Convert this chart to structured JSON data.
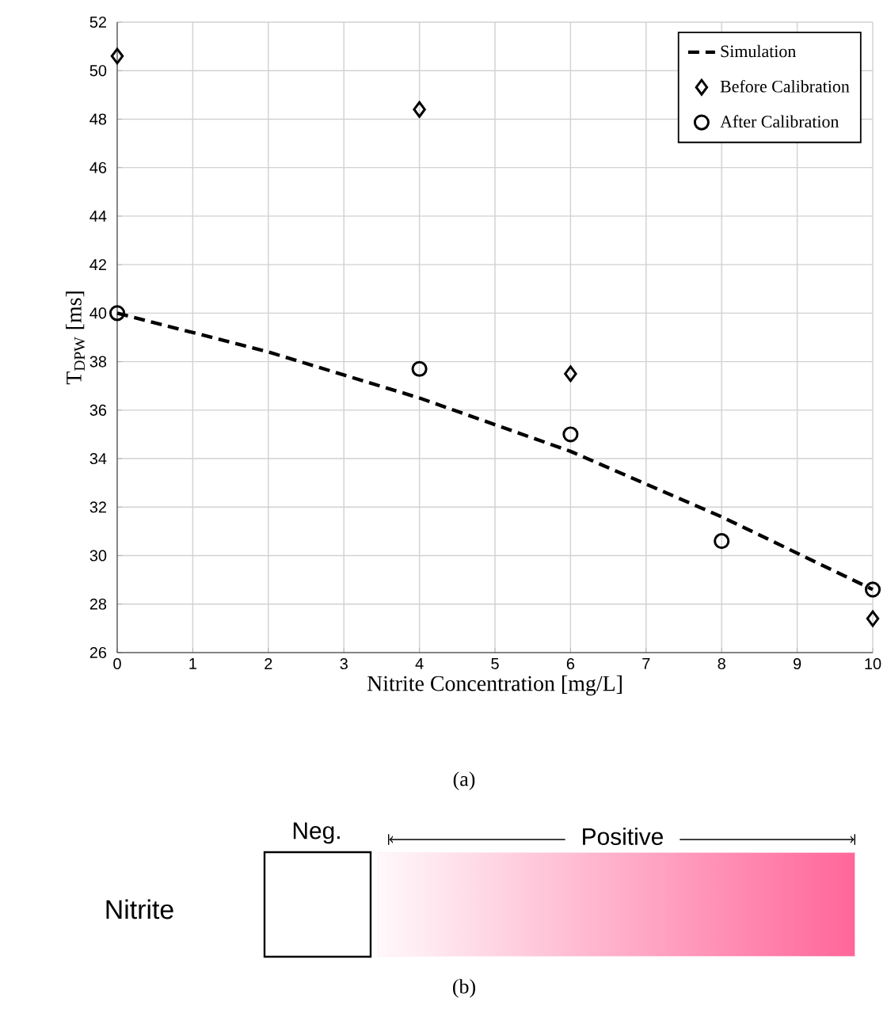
{
  "chart_data": [
    {
      "type": "scatter",
      "xlabel": "Nitrite Concentration [mg/L]",
      "ylabel": "T$_{DPW}$ [ms]",
      "xlim": [
        0,
        10
      ],
      "xticks": [
        0,
        1,
        2,
        3,
        4,
        5,
        6,
        7,
        8,
        9,
        10
      ],
      "ylim": [
        26,
        52
      ],
      "yticks": [
        26,
        28,
        30,
        32,
        34,
        36,
        38,
        40,
        42,
        44,
        46,
        48,
        50,
        52
      ],
      "grid": true,
      "legend": "top right",
      "series": [
        {
          "name": "Simulation",
          "type": "line",
          "line_style": "dashed",
          "marker": "none",
          "color": "#000000",
          "x": [
            0,
            2,
            4,
            6,
            8,
            10
          ],
          "values": [
            40,
            38.4,
            36.5,
            34.3,
            31.6,
            28.6
          ]
        },
        {
          "name": "Before Calibration",
          "marker": "diamond",
          "color": "#000000",
          "x": [
            0,
            4,
            6,
            10
          ],
          "values": [
            50.6,
            48.4,
            37.5,
            27.4
          ]
        },
        {
          "name": "After Calibration",
          "marker": "circle",
          "color": "#000000",
          "x": [
            0,
            4,
            6,
            8,
            10
          ],
          "values": [
            40,
            37.7,
            35,
            30.6,
            28.6
          ]
        }
      ],
      "annotations": [
        "(a)"
      ]
    },
    {
      "type": "other",
      "annotations": [
        "Neg.",
        "Positive",
        "Nitrite",
        "(b)"
      ]
    }
  ]
}
